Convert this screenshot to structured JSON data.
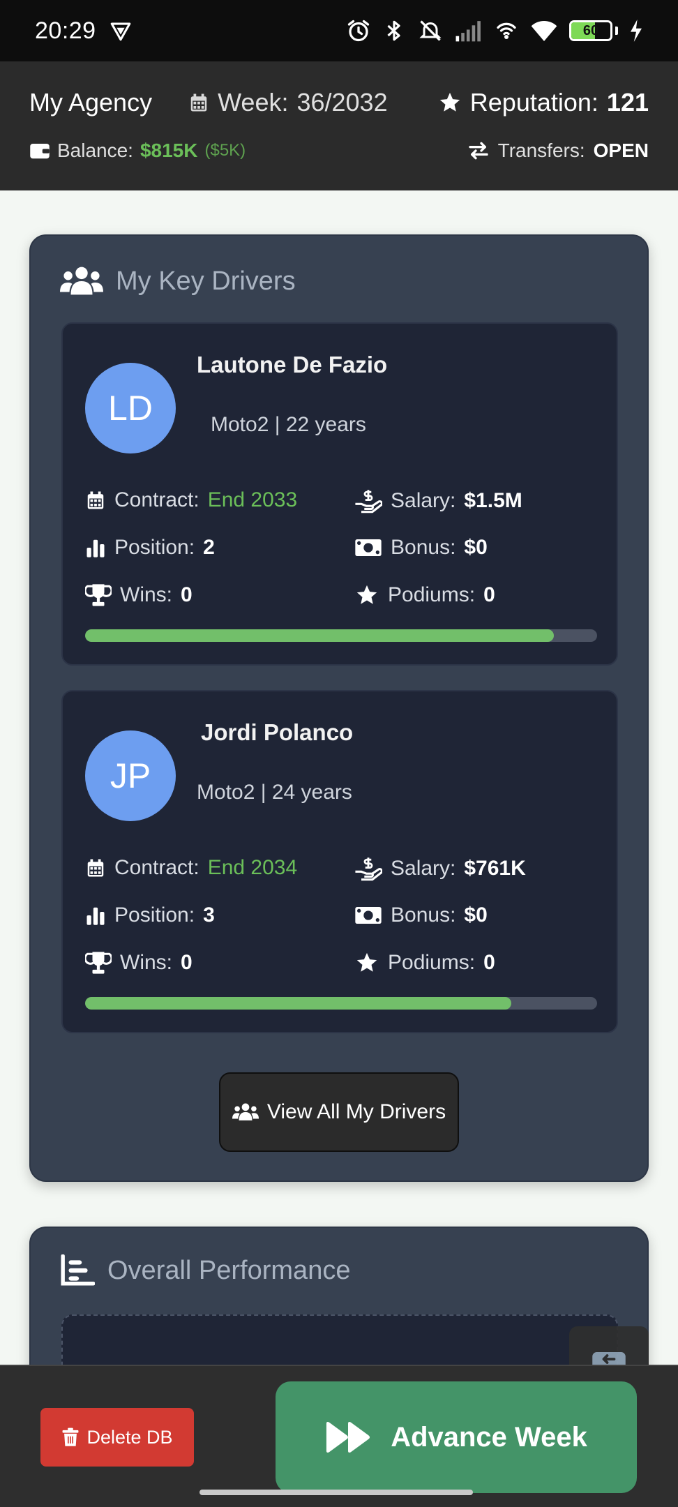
{
  "status_bar": {
    "time": "20:29",
    "battery_level": "60"
  },
  "header": {
    "agency": "My Agency",
    "week_label": "Week:",
    "week_value": "36/2032",
    "reputation_label": "Reputation:",
    "reputation_value": "121",
    "balance_label": "Balance:",
    "balance_value": "$815K",
    "balance_delta": "($5K)",
    "transfers_label": "Transfers:",
    "transfers_value": "OPEN"
  },
  "key_drivers": {
    "title": "My Key Drivers",
    "labels": {
      "contract": "Contract:",
      "salary": "Salary:",
      "position": "Position:",
      "bonus": "Bonus:",
      "wins": "Wins:",
      "podiums": "Podiums:"
    },
    "drivers": [
      {
        "initials": "LD",
        "name": "Lautone De Fazio",
        "meta": "Moto2 | 22 years",
        "contract": "End 2033",
        "salary": "$1.5M",
        "position": "2",
        "bonus": "$0",
        "wins": "0",
        "podiums": "0",
        "progress": 0.915
      },
      {
        "initials": "JP",
        "name": "Jordi Polanco",
        "meta": "Moto2 | 24 years",
        "contract": "End 2034",
        "salary": "$761K",
        "position": "3",
        "bonus": "$0",
        "wins": "0",
        "podiums": "0",
        "progress": 0.833
      }
    ],
    "view_all_label": "View All My Drivers"
  },
  "performance": {
    "title": "Overall Performance"
  },
  "bottom_bar": {
    "delete_label": "Delete DB",
    "advance_label": "Advance Week"
  },
  "colors": {
    "accent_green": "#6bbf59",
    "delete_red": "#d23a32",
    "advance_green": "#449468",
    "avatar_blue": "#6d9ef0"
  }
}
